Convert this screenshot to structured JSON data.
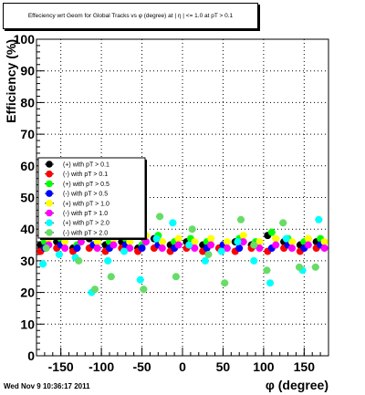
{
  "canvas": {
    "title": "Effeciency wrt Geom for Global Tracks vs φ (degree) at |  η | <= 1.0 at pT > 0.1",
    "footer": "Wed Nov  9 10:36:17 2011"
  },
  "chart_data": {
    "type": "scatter",
    "title": "Effeciency wrt Geom for Global Tracks vs φ (degree) at |  η | <= 1.0 at pT > 0.1",
    "xlabel": "φ (degree)",
    "ylabel": "Efficiency (%)",
    "xlim": [
      -180,
      180
    ],
    "ylim": [
      0,
      100
    ],
    "x_ticks": [
      -150,
      -100,
      -50,
      0,
      50,
      100,
      150
    ],
    "x_tick_labels": [
      "-150",
      "-100",
      "-50",
      "0",
      "50",
      "100",
      "150"
    ],
    "y_ticks": [
      0,
      10,
      20,
      30,
      40,
      50,
      60,
      70,
      80,
      90,
      100
    ],
    "y_tick_labels": [
      "0",
      "10",
      "20",
      "30",
      "40",
      "50",
      "60",
      "70",
      "80",
      "90",
      "100"
    ],
    "grid": true,
    "legend_position": "left-middle",
    "series": [
      {
        "name": "(+) with pT > 0.1",
        "color": "#000000",
        "x": [
          -175,
          -155,
          -135,
          -115,
          -95,
          -75,
          -55,
          -35,
          -15,
          5,
          25,
          45,
          65,
          85,
          105,
          125,
          145,
          165
        ],
        "y": [
          35,
          36,
          34,
          37,
          35,
          36,
          34,
          37,
          35,
          36,
          35,
          34,
          36,
          35,
          38,
          36,
          35,
          36
        ]
      },
      {
        "name": "(-) with pT > 0.1",
        "color": "#ff0000",
        "x": [
          -175,
          -155,
          -135,
          -115,
          -95,
          -75,
          -55,
          -35,
          -15,
          5,
          25,
          45,
          65,
          85,
          105,
          125,
          145,
          165
        ],
        "y": [
          33,
          34,
          33,
          34,
          33,
          34,
          33,
          34,
          33,
          34,
          33,
          34,
          33,
          34,
          33,
          34,
          33,
          34
        ]
      },
      {
        "name": "(+) with pT > 0.5",
        "color": "#00ff00",
        "x": [
          -170,
          -150,
          -130,
          -110,
          -90,
          -70,
          -50,
          -30,
          -10,
          10,
          30,
          50,
          70,
          90,
          110,
          130,
          150,
          170
        ],
        "y": [
          36,
          37,
          35,
          38,
          36,
          37,
          35,
          38,
          36,
          37,
          36,
          35,
          37,
          36,
          39,
          37,
          36,
          37
        ]
      },
      {
        "name": "(-) with pT > 0.5",
        "color": "#0000ff",
        "x": [
          -170,
          -150,
          -130,
          -110,
          -90,
          -70,
          -50,
          -30,
          -10,
          10,
          30,
          50,
          70,
          90,
          110,
          130,
          150,
          170
        ],
        "y": [
          34,
          35,
          34,
          35,
          34,
          35,
          34,
          35,
          34,
          35,
          34,
          35,
          34,
          35,
          34,
          35,
          34,
          35
        ]
      },
      {
        "name": "(+) with pT > 1.0",
        "color": "#ffff00",
        "x": [
          -165,
          -145,
          -125,
          -105,
          -85,
          -65,
          -45,
          -25,
          -5,
          15,
          35,
          55,
          75,
          95,
          115,
          135,
          155,
          175
        ],
        "y": [
          37,
          36,
          38,
          36,
          37,
          36,
          38,
          36,
          37,
          36,
          37,
          36,
          38,
          36,
          37,
          36,
          37,
          36
        ]
      },
      {
        "name": "(-) with pT > 1.0",
        "color": "#ff00ff",
        "x": [
          -165,
          -145,
          -125,
          -105,
          -85,
          -65,
          -45,
          -25,
          -5,
          15,
          35,
          55,
          75,
          95,
          115,
          135,
          155,
          175
        ],
        "y": [
          35,
          34,
          36,
          34,
          35,
          34,
          36,
          34,
          35,
          34,
          35,
          34,
          36,
          34,
          35,
          34,
          35,
          34
        ]
      },
      {
        "name": "(+) with pT > 2.0",
        "color": "#00ffff",
        "x": [
          -172,
          -152,
          -132,
          -112,
          -92,
          -72,
          -52,
          -32,
          -12,
          8,
          28,
          48,
          68,
          88,
          108,
          128,
          148,
          168
        ],
        "y": [
          29,
          32,
          31,
          20,
          30,
          33,
          24,
          37,
          42,
          35,
          30,
          33,
          36,
          30,
          23,
          37,
          27,
          43
        ]
      },
      {
        "name": "(-) with pT > 2.0",
        "color": "#66dd66",
        "x": [
          -168,
          -148,
          -128,
          -108,
          -88,
          -68,
          -48,
          -28,
          -8,
          12,
          32,
          52,
          72,
          88,
          104,
          124,
          144,
          164
        ],
        "y": [
          34,
          39,
          30,
          21,
          25,
          38,
          21,
          44,
          25,
          40,
          32,
          23,
          43,
          35,
          27,
          42,
          28,
          28
        ]
      }
    ]
  }
}
